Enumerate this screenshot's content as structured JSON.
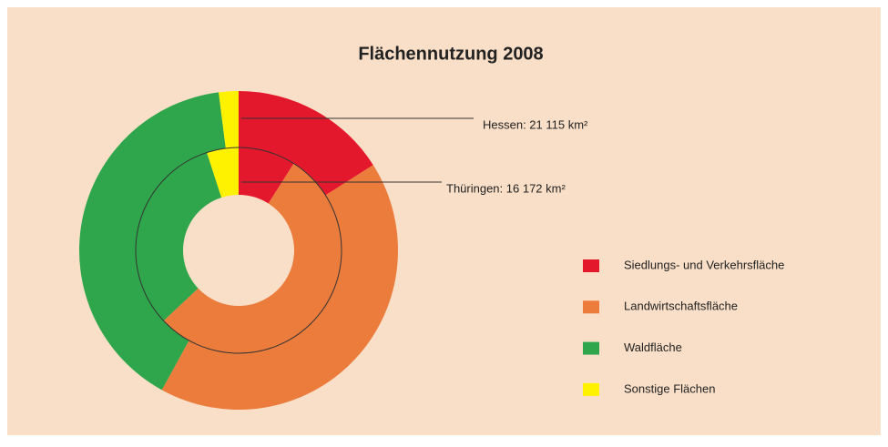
{
  "chart_data": {
    "type": "donut",
    "title": "Flächennutzung 2008",
    "categories": [
      "Siedlungs- und Verkehrsfläche",
      "Landwirtschaftsfläche",
      "Waldfläche",
      "Sonstige Flächen"
    ],
    "colors": [
      "#e3182c",
      "#ec7c3c",
      "#2fa64b",
      "#fff200"
    ],
    "rings": [
      {
        "name": "Hessen:  21 115 km²",
        "values": [
          16,
          42,
          40,
          2
        ]
      },
      {
        "name": "Thüringen: 16 172 km²",
        "values": [
          9,
          54,
          32,
          5
        ]
      }
    ]
  }
}
